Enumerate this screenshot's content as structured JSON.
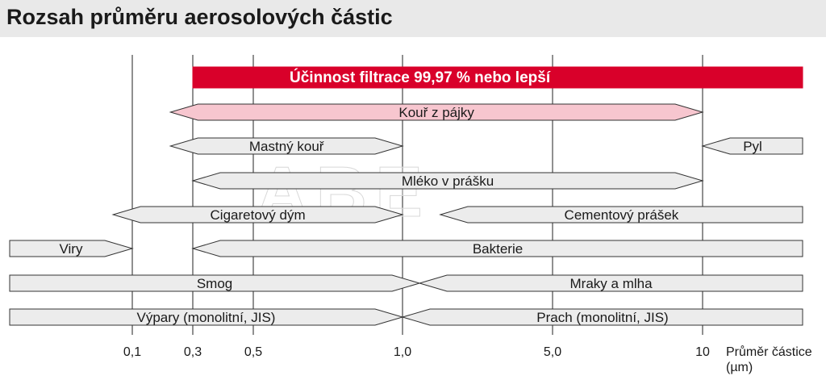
{
  "title": "Rozsah průměru aerosolových částic",
  "colors": {
    "gridline": "#222222",
    "bar_fill": "#ececec",
    "bar_stroke": "#333333",
    "highlight_fill": "#d9002a",
    "highlight_text": "#ffffff",
    "pink_fill": "#f7c6cf",
    "title_bg": "#e9e9e9"
  },
  "chart_data": {
    "type": "range-bar",
    "x_unit": "µm",
    "xlabel": "Průměr částice (µm)",
    "x_ticks": [
      {
        "value": 0.1,
        "label": "0,1"
      },
      {
        "value": 0.3,
        "label": "0,3"
      },
      {
        "value": 0.5,
        "label": "0,5"
      },
      {
        "value": 1.0,
        "label": "1,0"
      },
      {
        "value": 5.0,
        "label": "5,0"
      },
      {
        "value": 10,
        "label": "10"
      }
    ],
    "bars": [
      {
        "label": "Účinnost filtrace 99,97 % nebo lepší",
        "from": 0.3,
        "to": "max",
        "style": "highlight"
      },
      {
        "label": "Kouř z pájky",
        "from": 0.2,
        "to": 10,
        "style": "pink"
      },
      {
        "label": "Mastný kouř",
        "from": 0.2,
        "to": 1.0,
        "style": "normal"
      },
      {
        "label": "Pyl",
        "from": 10,
        "to": "max",
        "style": "normal"
      },
      {
        "label": "Mléko v prášku",
        "from": 0.3,
        "to": 10,
        "style": "normal"
      },
      {
        "label": "Cigaretový dým",
        "from": 0.08,
        "to": 1.0,
        "style": "normal"
      },
      {
        "label": "Cementový prášek",
        "from": 1.5,
        "to": "max",
        "style": "normal"
      },
      {
        "label": "Viry",
        "from": "min",
        "to": 0.1,
        "style": "normal"
      },
      {
        "label": "Bakterie",
        "from": 0.3,
        "to": "max",
        "style": "normal"
      },
      {
        "label": "Smog",
        "from": "min",
        "to": 1.2,
        "style": "normal"
      },
      {
        "label": "Mraky a mlha",
        "from": 1.2,
        "to": "max",
        "style": "normal"
      },
      {
        "label": "Výpary (monolitní, JIS)",
        "from": "min",
        "to": 1.0,
        "style": "normal"
      },
      {
        "label": "Prach (monolitní, JIS)",
        "from": 1.0,
        "to": "max",
        "style": "normal"
      }
    ]
  }
}
